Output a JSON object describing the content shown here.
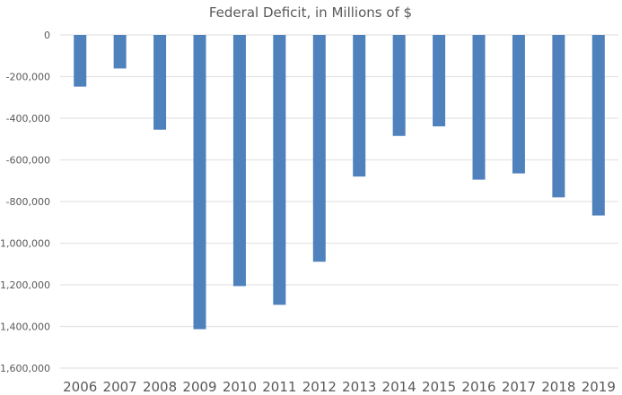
{
  "chart_data": {
    "type": "bar",
    "title": "Federal Deficit, in Millions of $",
    "xlabel": "",
    "ylabel": "",
    "categories": [
      "2006",
      "2007",
      "2008",
      "2009",
      "2010",
      "2011",
      "2012",
      "2013",
      "2014",
      "2015",
      "2016",
      "2017",
      "2018",
      "2019"
    ],
    "series": [
      {
        "name": "Federal Deficit",
        "color": "#4f81bd",
        "values": [
          -248000,
          -161000,
          -455000,
          -1413000,
          -1206000,
          -1296000,
          -1089000,
          -680000,
          -485000,
          -439000,
          -695000,
          -665000,
          -780000,
          -867000
        ]
      }
    ],
    "ylim": [
      -1600000,
      0
    ],
    "yticks": [
      0,
      -200000,
      -400000,
      -600000,
      -800000,
      -1000000,
      -1200000,
      -1400000,
      -1600000
    ],
    "ytick_labels": [
      "0",
      "-200,000",
      "-400,000",
      "-600,000",
      "-800,000",
      "-1,000,000",
      "-1,200,000",
      "-1,400,000",
      "-1,600,000"
    ],
    "grid": true,
    "legend": "none"
  }
}
